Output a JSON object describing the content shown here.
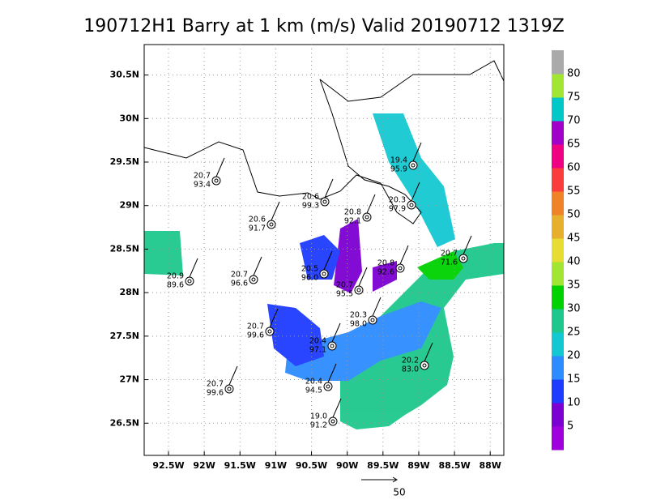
{
  "title": "190712H1 Barry at 1 km (m/s) Valid 20190712 1319Z",
  "map": {
    "lon_range": [
      -92.84,
      -87.81
    ],
    "lat_range": [
      26.13,
      30.85
    ],
    "lon_ticks": [
      {
        "value": -92.5,
        "label": "92.5W"
      },
      {
        "value": -92,
        "label": "92W"
      },
      {
        "value": -91.5,
        "label": "91.5W"
      },
      {
        "value": -91,
        "label": "91W"
      },
      {
        "value": -90.5,
        "label": "90.5W"
      },
      {
        "value": -90,
        "label": "90W"
      },
      {
        "value": -89.5,
        "label": "89.5W"
      },
      {
        "value": -89,
        "label": "89W"
      },
      {
        "value": -88.5,
        "label": "88.5W"
      },
      {
        "value": -88,
        "label": "88W"
      }
    ],
    "lat_ticks": [
      {
        "value": 26.5,
        "label": "26.5N"
      },
      {
        "value": 27,
        "label": "27N"
      },
      {
        "value": 27.5,
        "label": "27.5N"
      },
      {
        "value": 28,
        "label": "28N"
      },
      {
        "value": 28.5,
        "label": "28.5N"
      },
      {
        "value": 29,
        "label": "29N"
      },
      {
        "value": 29.5,
        "label": "29.5N"
      },
      {
        "value": 30,
        "label": "30N"
      },
      {
        "value": 30.5,
        "label": "30.5N"
      }
    ]
  },
  "colorbar": {
    "levels": [
      5,
      10,
      15,
      20,
      25,
      30,
      35,
      40,
      45,
      50,
      55,
      60,
      65,
      70,
      75,
      80
    ],
    "colors": [
      "#a000dc",
      "#7d00d2",
      "#1e3cff",
      "#2d8cff",
      "#14c8d2",
      "#1ec88c",
      "#00d200",
      "#a0e632",
      "#e6dc32",
      "#e6af2d",
      "#f08228",
      "#fa3c3c",
      "#f00082",
      "#a000c8",
      "#00c8c8",
      "#a0e632",
      "#aaaaaa"
    ]
  },
  "stations": [
    {
      "lines": [
        "20.7",
        "93.4"
      ]
    },
    {
      "lines": [
        "20.9",
        "89.6"
      ]
    },
    {
      "lines": [
        "20.7",
        "96.6"
      ]
    },
    {
      "lines": [
        "20.6",
        "91.7"
      ]
    },
    {
      "lines": [
        "20.6",
        "99.3"
      ]
    },
    {
      "lines": [
        "20.8",
        "92.1"
      ]
    },
    {
      "lines": [
        "20.3",
        "97.9"
      ]
    },
    {
      "lines": [
        "19.4",
        "95.9"
      ]
    },
    {
      "lines": [
        "20.7",
        "71.6"
      ]
    },
    {
      "lines": [
        "20.8",
        "92.6"
      ]
    },
    {
      "lines": [
        "20.7",
        "95.5"
      ]
    },
    {
      "lines": [
        "20.3",
        "98.0"
      ]
    },
    {
      "lines": [
        "20.5",
        "96.0"
      ]
    },
    {
      "lines": [
        "20.7",
        "99.6"
      ]
    },
    {
      "lines": [
        "20.4",
        "97.1"
      ]
    },
    {
      "lines": [
        "20.2",
        "83.0"
      ]
    },
    {
      "lines": [
        "20.4",
        "94.5"
      ]
    },
    {
      "lines": [
        "20.7",
        "99.6"
      ]
    },
    {
      "lines": [
        "19.0",
        "91.2"
      ]
    }
  ],
  "reference_vector": "50"
}
